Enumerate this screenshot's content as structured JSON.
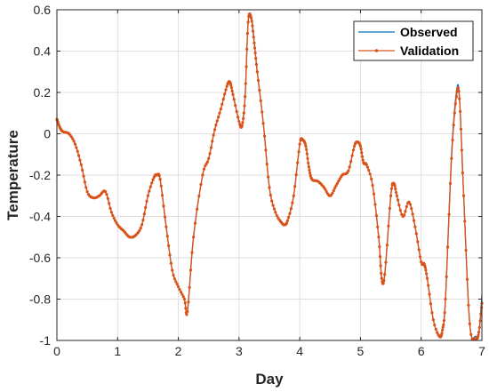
{
  "chart_data": {
    "type": "line",
    "title": "",
    "xlabel": "Day",
    "ylabel": "Temperature",
    "xlim": [
      0,
      7
    ],
    "ylim": [
      -1,
      0.6
    ],
    "xticks": [
      0,
      1,
      2,
      3,
      4,
      5,
      6,
      7
    ],
    "yticks": [
      -1,
      -0.8,
      -0.6,
      -0.4,
      -0.2,
      0,
      0.2,
      0.4,
      0.6
    ],
    "grid": true,
    "legend_position": "top-right",
    "colors": {
      "observed": "#0072BD",
      "validation": "#D95319"
    },
    "x": [
      0,
      0.05,
      0.1,
      0.2,
      0.3,
      0.4,
      0.5,
      0.6,
      0.7,
      0.8,
      0.9,
      1.0,
      1.1,
      1.2,
      1.3,
      1.4,
      1.5,
      1.6,
      1.65,
      1.7,
      1.8,
      1.9,
      2.0,
      2.1,
      2.15,
      2.25,
      2.4,
      2.5,
      2.6,
      2.7,
      2.8,
      2.85,
      2.9,
      3.0,
      3.05,
      3.1,
      3.15,
      3.2,
      3.25,
      3.3,
      3.4,
      3.5,
      3.6,
      3.7,
      3.75,
      3.8,
      3.9,
      4.0,
      4.05,
      4.1,
      4.15,
      4.2,
      4.3,
      4.4,
      4.5,
      4.6,
      4.7,
      4.8,
      4.9,
      4.95,
      5.0,
      5.05,
      5.1,
      5.2,
      5.3,
      5.35,
      5.4,
      5.5,
      5.55,
      5.6,
      5.7,
      5.8,
      5.9,
      6.0,
      6.05,
      6.1,
      6.2,
      6.3,
      6.35,
      6.4,
      6.5,
      6.58,
      6.63,
      6.7,
      6.8,
      6.9,
      6.95,
      7.0
    ],
    "series": [
      {
        "name": "Observed",
        "values": [
          0.07,
          0.03,
          0.01,
          0.0,
          -0.05,
          -0.15,
          -0.28,
          -0.31,
          -0.3,
          -0.28,
          -0.38,
          -0.44,
          -0.47,
          -0.5,
          -0.49,
          -0.44,
          -0.3,
          -0.21,
          -0.2,
          -0.22,
          -0.45,
          -0.66,
          -0.74,
          -0.8,
          -0.86,
          -0.5,
          -0.2,
          -0.12,
          0.02,
          0.12,
          0.23,
          0.25,
          0.19,
          0.06,
          0.04,
          0.18,
          0.54,
          0.57,
          0.45,
          0.3,
          0.05,
          -0.26,
          -0.38,
          -0.43,
          -0.44,
          -0.42,
          -0.3,
          -0.05,
          -0.03,
          -0.06,
          -0.16,
          -0.22,
          -0.23,
          -0.26,
          -0.3,
          -0.25,
          -0.2,
          -0.18,
          -0.06,
          -0.04,
          -0.06,
          -0.14,
          -0.15,
          -0.25,
          -0.5,
          -0.7,
          -0.68,
          -0.3,
          -0.24,
          -0.3,
          -0.4,
          -0.33,
          -0.45,
          -0.62,
          -0.63,
          -0.7,
          -0.9,
          -0.98,
          -0.95,
          -0.8,
          -0.1,
          0.2,
          0.18,
          -0.3,
          -0.92,
          -0.98,
          -0.97,
          -0.78
        ]
      },
      {
        "name": "Validation",
        "values": [
          0.07,
          0.03,
          0.01,
          0.0,
          -0.05,
          -0.15,
          -0.28,
          -0.31,
          -0.3,
          -0.28,
          -0.38,
          -0.44,
          -0.47,
          -0.5,
          -0.49,
          -0.44,
          -0.3,
          -0.21,
          -0.2,
          -0.22,
          -0.45,
          -0.66,
          -0.74,
          -0.8,
          -0.86,
          -0.5,
          -0.2,
          -0.12,
          0.02,
          0.12,
          0.23,
          0.25,
          0.19,
          0.06,
          0.04,
          0.18,
          0.54,
          0.56,
          0.44,
          0.3,
          0.05,
          -0.26,
          -0.38,
          -0.43,
          -0.44,
          -0.42,
          -0.3,
          -0.05,
          -0.03,
          -0.06,
          -0.16,
          -0.22,
          -0.23,
          -0.26,
          -0.3,
          -0.25,
          -0.2,
          -0.18,
          -0.06,
          -0.04,
          -0.06,
          -0.14,
          -0.15,
          -0.25,
          -0.5,
          -0.7,
          -0.68,
          -0.3,
          -0.24,
          -0.3,
          -0.4,
          -0.33,
          -0.45,
          -0.62,
          -0.63,
          -0.7,
          -0.9,
          -0.98,
          -0.95,
          -0.8,
          -0.12,
          0.18,
          0.17,
          -0.3,
          -0.92,
          -0.99,
          -0.96,
          -0.82
        ]
      }
    ]
  }
}
